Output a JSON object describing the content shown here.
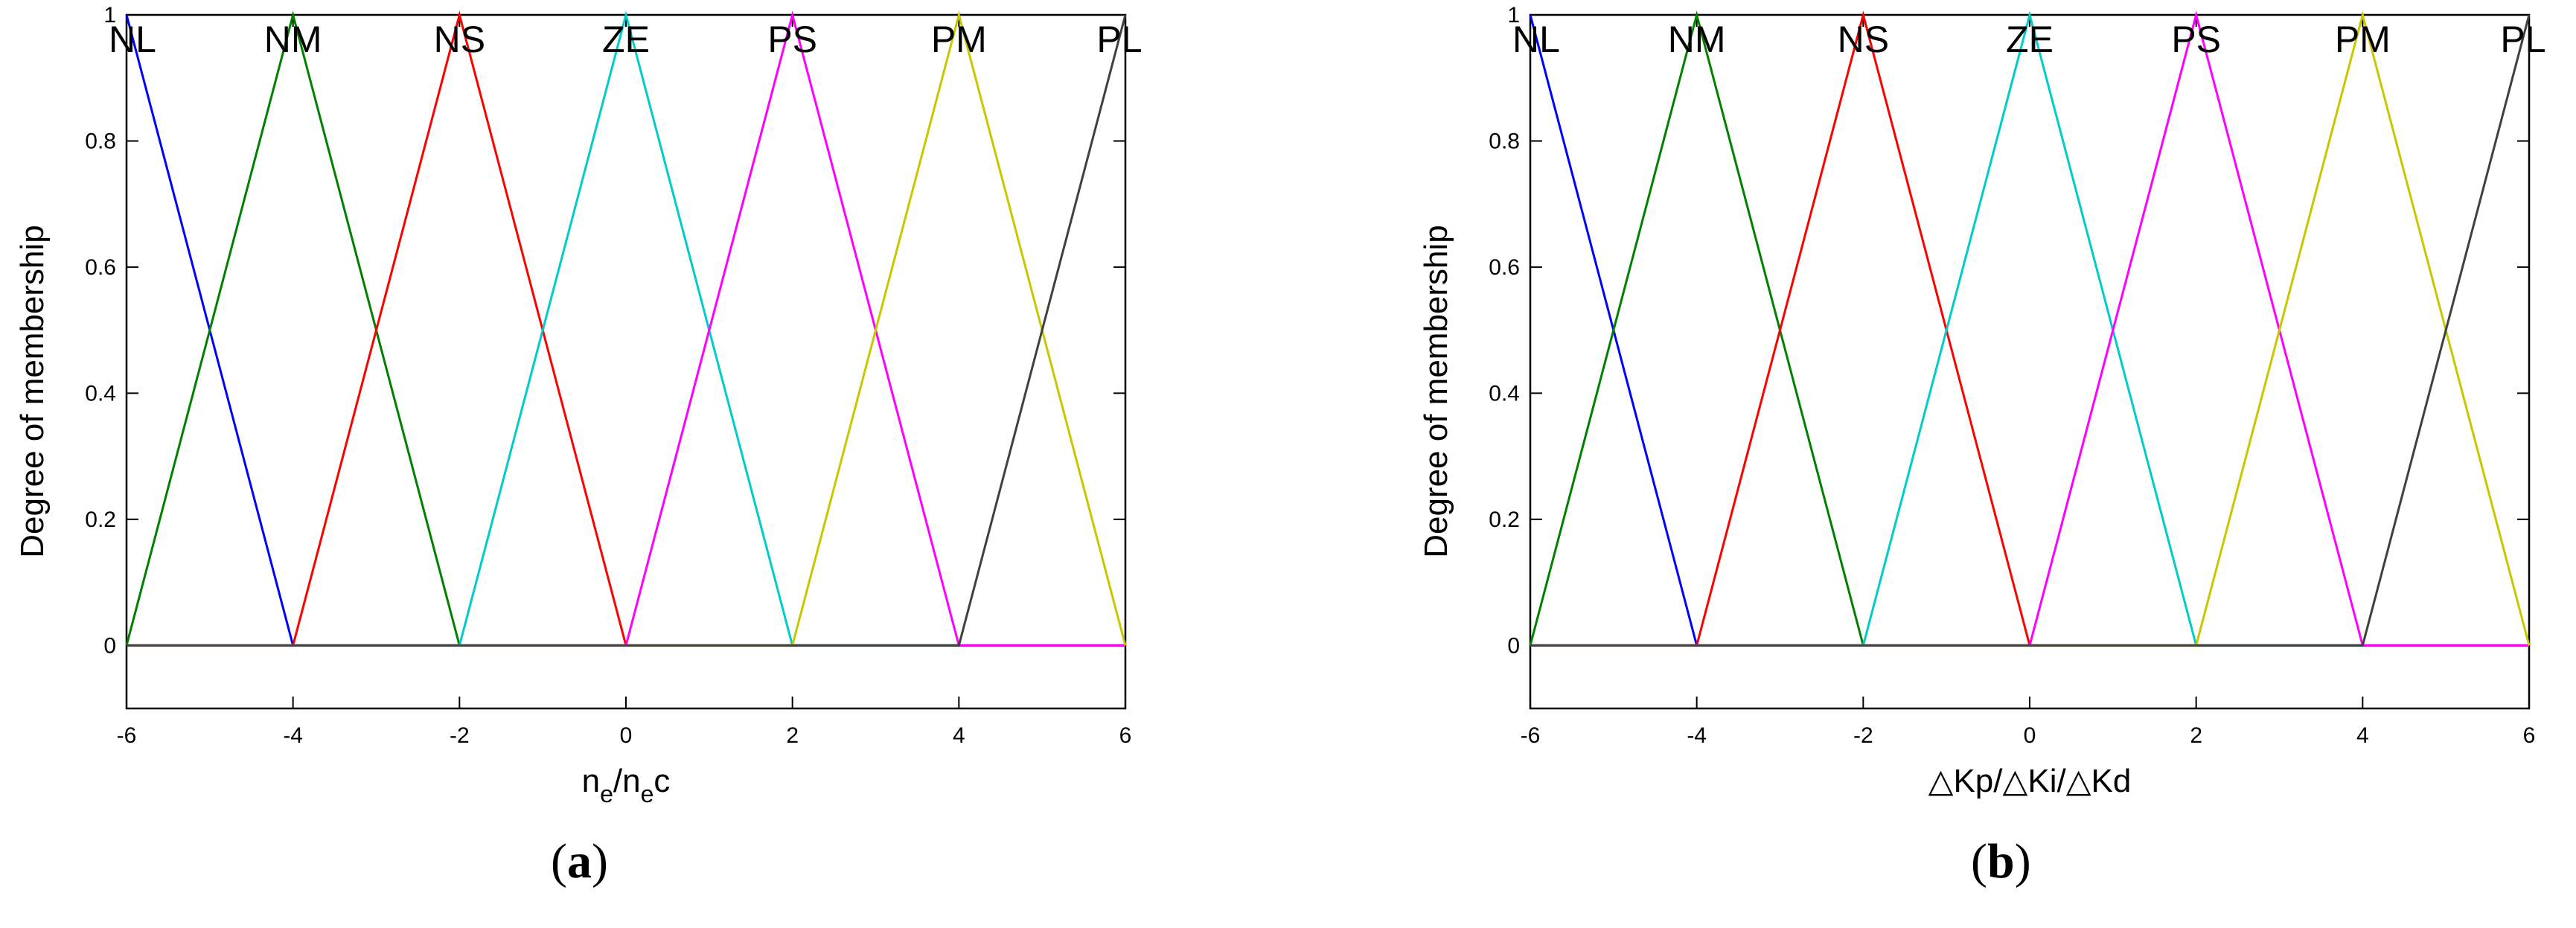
{
  "chart_data": [
    {
      "type": "line",
      "xlabel_base": "n",
      "xlabel_sub1": "e",
      "xlabel_mid": "/n",
      "xlabel_sub2": "e",
      "xlabel_tail": "c",
      "ylabel": "Degree of membership",
      "xlim": [
        -6,
        6
      ],
      "ylim": [
        -0.1,
        1.0
      ],
      "xticks": [
        "-6",
        "-4",
        "-2",
        "0",
        "2",
        "4",
        "6"
      ],
      "yticks": [
        "0",
        "0.2",
        "0.4",
        "0.6",
        "0.8",
        "1"
      ],
      "grid": false,
      "series": [
        {
          "name": "NL",
          "color": "#0000ff",
          "x": [
            -6,
            -4,
            6
          ],
          "y": [
            1,
            0,
            0
          ],
          "peak": -6
        },
        {
          "name": "NM",
          "color": "#008000",
          "x": [
            -6,
            -4,
            -2,
            6
          ],
          "y": [
            0,
            1,
            0,
            0
          ],
          "peak": -4
        },
        {
          "name": "NS",
          "color": "#ff0000",
          "x": [
            -6,
            -4,
            -2,
            0,
            6
          ],
          "y": [
            0,
            0,
            1,
            0,
            0
          ],
          "peak": -2
        },
        {
          "name": "ZE",
          "color": "#00cccc",
          "x": [
            -6,
            -2,
            0,
            2,
            6
          ],
          "y": [
            0,
            0,
            1,
            0,
            0
          ],
          "peak": 0
        },
        {
          "name": "PS",
          "color": "#ff00ff",
          "x": [
            -6,
            0,
            2,
            4,
            6
          ],
          "y": [
            0,
            0,
            1,
            0,
            0
          ],
          "peak": 2
        },
        {
          "name": "PM",
          "color": "#c8c800",
          "x": [
            -6,
            2,
            4,
            6
          ],
          "y": [
            0,
            0,
            1,
            0
          ],
          "peak": 4
        },
        {
          "name": "PL",
          "color": "#404040",
          "x": [
            -6,
            4,
            6
          ],
          "y": [
            0,
            0,
            1
          ],
          "peak": 6
        }
      ],
      "caption_open": "(",
      "caption_letter": "a",
      "caption_close": ")"
    },
    {
      "type": "line",
      "xlabel": "△Kp/△Ki/△Kd",
      "ylabel": "Degree of membership",
      "xlim": [
        -6,
        6
      ],
      "ylim": [
        -0.1,
        1.0
      ],
      "xticks": [
        "-6",
        "-4",
        "-2",
        "0",
        "2",
        "4",
        "6"
      ],
      "yticks": [
        "0",
        "0.2",
        "0.4",
        "0.6",
        "0.8",
        "1"
      ],
      "grid": false,
      "series": [
        {
          "name": "NL",
          "color": "#0000ff",
          "x": [
            -6,
            -4,
            6
          ],
          "y": [
            1,
            0,
            0
          ],
          "peak": -6
        },
        {
          "name": "NM",
          "color": "#008000",
          "x": [
            -6,
            -4,
            -2,
            6
          ],
          "y": [
            0,
            1,
            0,
            0
          ],
          "peak": -4
        },
        {
          "name": "NS",
          "color": "#ff0000",
          "x": [
            -6,
            -4,
            -2,
            0,
            6
          ],
          "y": [
            0,
            0,
            1,
            0,
            0
          ],
          "peak": -2
        },
        {
          "name": "ZE",
          "color": "#00cccc",
          "x": [
            -6,
            -2,
            0,
            2,
            6
          ],
          "y": [
            0,
            0,
            1,
            0,
            0
          ],
          "peak": 0
        },
        {
          "name": "PS",
          "color": "#ff00ff",
          "x": [
            -6,
            0,
            2,
            4,
            6
          ],
          "y": [
            0,
            0,
            1,
            0,
            0
          ],
          "peak": 2
        },
        {
          "name": "PM",
          "color": "#c8c800",
          "x": [
            -6,
            2,
            4,
            6
          ],
          "y": [
            0,
            0,
            1,
            0
          ],
          "peak": 4
        },
        {
          "name": "PL",
          "color": "#404040",
          "x": [
            -6,
            4,
            6
          ],
          "y": [
            0,
            0,
            1
          ],
          "peak": 6
        }
      ],
      "caption_open": "(",
      "caption_letter": "b",
      "caption_close": ")"
    }
  ]
}
